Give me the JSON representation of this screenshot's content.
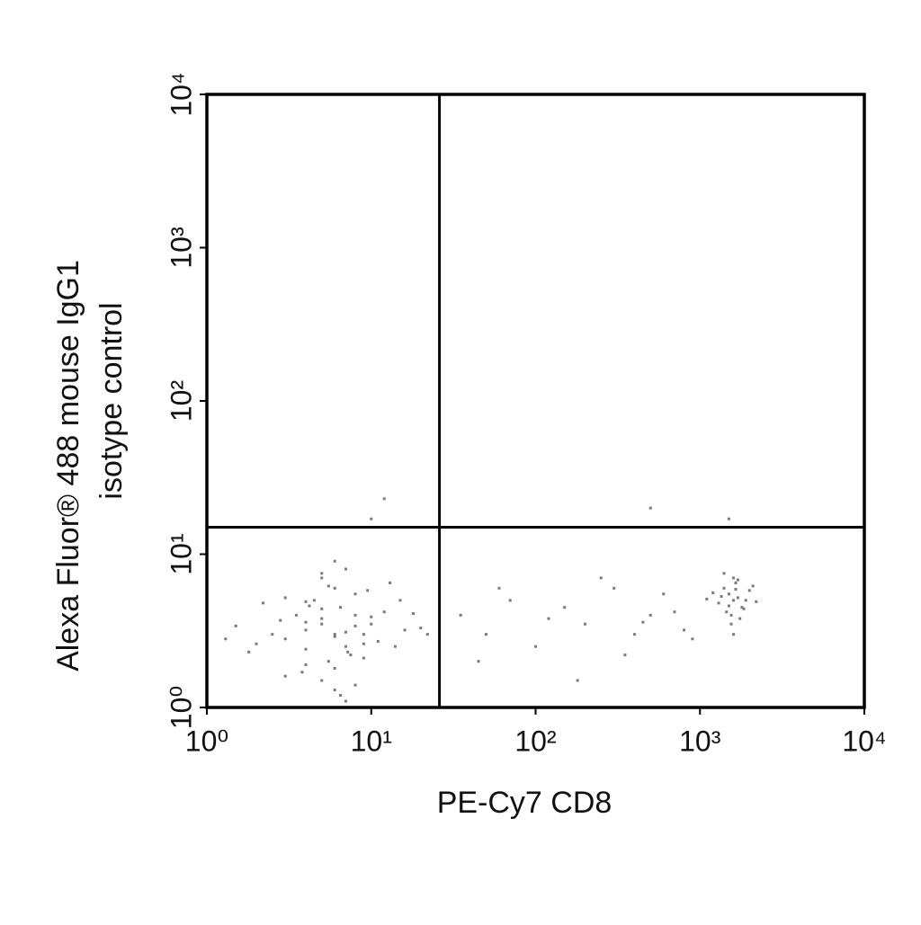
{
  "chart_data": {
    "type": "scatter",
    "xlabel": "PE-Cy7 CD8",
    "ylabel": [
      "Alexa Fluor® 488 mouse IgG1",
      "isotype control"
    ],
    "xscale": "log",
    "yscale": "log",
    "xlim": [
      1,
      10000
    ],
    "ylim": [
      1,
      10000
    ],
    "xticks": [
      {
        "value": 1,
        "label": "10⁰"
      },
      {
        "value": 10,
        "label": "10¹"
      },
      {
        "value": 100,
        "label": "10²"
      },
      {
        "value": 1000,
        "label": "10³"
      },
      {
        "value": 10000,
        "label": "10⁴"
      }
    ],
    "yticks": [
      {
        "value": 1,
        "label": "10⁰"
      },
      {
        "value": 10,
        "label": "10¹"
      },
      {
        "value": 100,
        "label": "10²"
      },
      {
        "value": 1000,
        "label": "10³"
      },
      {
        "value": 10000,
        "label": "10⁴"
      }
    ],
    "quadrant_x": 26,
    "quadrant_y": 15,
    "color": "#7a7a7a",
    "x": [
      6,
      5,
      7,
      4,
      8,
      5.5,
      6.5,
      3,
      9,
      4.5,
      7.5,
      5,
      6,
      10,
      3.5,
      2.5,
      12,
      4,
      8,
      5,
      6,
      7,
      2,
      15,
      3,
      9,
      5,
      4,
      11,
      6,
      1.5,
      1.8,
      2.2,
      18,
      20,
      13,
      7,
      5,
      6,
      4,
      3,
      8,
      10,
      6.5,
      5.5,
      4.2,
      7.2,
      9.5,
      2.8,
      3.8,
      14,
      16,
      1.3,
      6,
      5,
      7,
      8,
      4,
      9,
      22,
      35,
      50,
      70,
      100,
      150,
      200,
      300,
      400,
      500,
      600,
      800,
      45,
      120,
      250,
      350,
      700,
      900,
      60,
      180,
      450,
      1600,
      1500,
      1800,
      1400,
      1700,
      1300,
      2000,
      1550,
      1650,
      1450,
      1900,
      1200,
      1750,
      1600,
      1500,
      2100,
      1350,
      1850,
      1650,
      1550,
      1100,
      2200,
      1400,
      1700,
      1600,
      12,
      500,
      1500,
      10
    ],
    "y": [
      3,
      3.5,
      2.5,
      3.2,
      4,
      2,
      4.5,
      2.8,
      3,
      5,
      2.2,
      1.5,
      6,
      3.5,
      4,
      3,
      4.2,
      2.4,
      5.5,
      3.8,
      1.8,
      3.1,
      2.6,
      5,
      1.6,
      2.1,
      7,
      3.6,
      2.7,
      1.3,
      3.4,
      2.3,
      4.8,
      4.1,
      3.3,
      6.5,
      8,
      4.4,
      2.9,
      1.9,
      5.2,
      1.4,
      3.9,
      1.2,
      6.2,
      4.6,
      2.3,
      5.8,
      3.7,
      1.7,
      2.5,
      3.2,
      2.8,
      9,
      7.5,
      1.1,
      3.4,
      4.9,
      2.6,
      3,
      4,
      3,
      5,
      2.5,
      4.5,
      3.5,
      6,
      3,
      4,
      5.5,
      3.2,
      2,
      3.8,
      7,
      2.2,
      4.2,
      2.8,
      6,
      1.5,
      3.6,
      5,
      5.5,
      4.5,
      6,
      5.2,
      4.8,
      5.8,
      4,
      6.5,
      4.2,
      5,
      5.6,
      3.8,
      7,
      4.6,
      6.2,
      5.3,
      4.4,
      5.9,
      3.5,
      5.1,
      4.9,
      7.5,
      6.8,
      3,
      23,
      20,
      17,
      17
    ]
  }
}
